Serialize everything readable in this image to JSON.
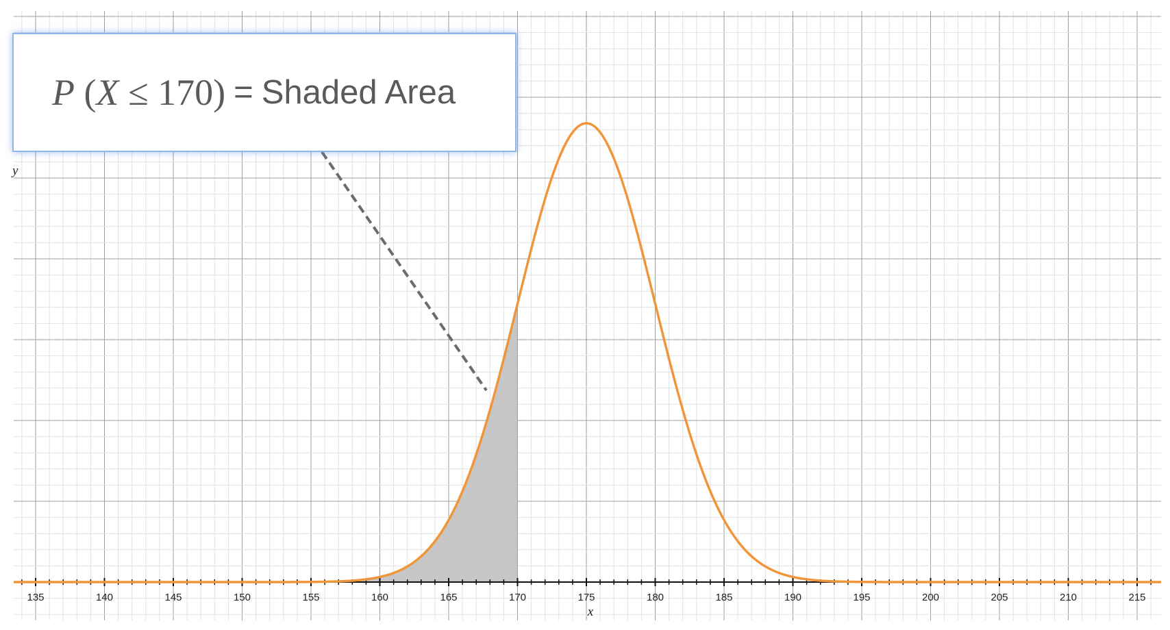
{
  "chart_data": {
    "type": "area",
    "title": "",
    "xlabel": "x",
    "ylabel": "y",
    "xlim": [
      133.5,
      217.5
    ],
    "x_ticks": [
      135,
      140,
      145,
      150,
      155,
      160,
      165,
      170,
      175,
      180,
      185,
      190,
      195,
      200,
      205,
      210,
      215
    ],
    "grid": true,
    "series": [
      {
        "type": "normal-density-curve",
        "mean": 175,
        "sd": 5,
        "color": "#f0963a"
      }
    ],
    "shaded_region": {
      "from": 150,
      "to": 170,
      "color": "#c6c6c6"
    },
    "annotation": {
      "lhs_prefix": "P",
      "lhs_open": "(",
      "lhs_var": "X",
      "lhs_op": "≤",
      "lhs_value": "170",
      "lhs_close": ")",
      "equals": "=",
      "rhs": "Shaded Area"
    },
    "pointer_line": {
      "style": "dashed",
      "color": "#6b6b6b"
    }
  }
}
